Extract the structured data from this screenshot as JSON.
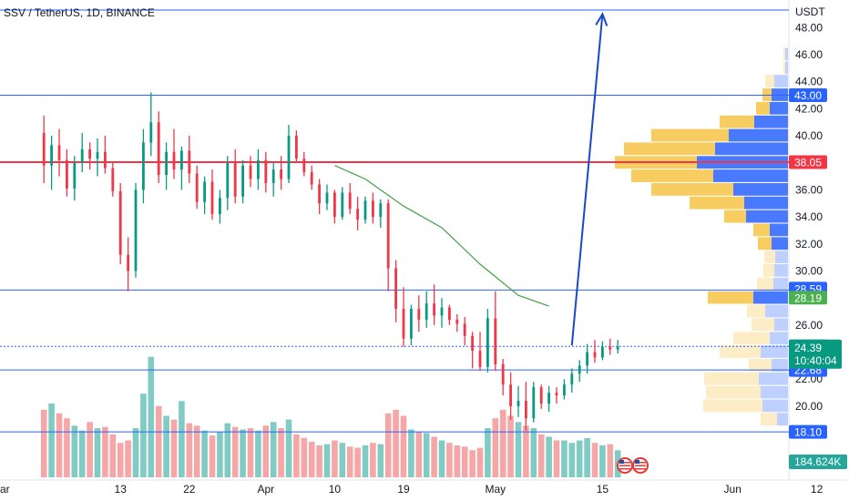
{
  "title": "SSV / TetherUS, 1D, BINANCE",
  "currency": "USDT",
  "chart_data": {
    "type": "candlestick",
    "y_range": [
      17.3,
      49.5
    ],
    "y_ticks": [
      "48.00",
      "46.00",
      "44.00",
      "42.00",
      "40.00",
      "38.00",
      "36.00",
      "34.00",
      "32.00",
      "30.00",
      "28.00",
      "26.00",
      "22.00",
      "20.00"
    ],
    "y_tick_values": [
      48,
      46,
      44,
      42,
      40,
      38,
      36,
      34,
      32,
      30,
      28,
      26,
      22,
      20
    ],
    "x_labels": [
      "ar",
      "13",
      "22",
      "Apr",
      "10",
      "19",
      "May",
      "15",
      "Jun",
      "12"
    ],
    "x_label_days": [
      -10,
      13,
      22,
      32,
      41,
      50,
      62,
      76,
      93,
      104
    ],
    "start_day": 3,
    "ohlc": [
      [
        40.2,
        41.5,
        36.5,
        37.8
      ],
      [
        37.8,
        40.0,
        36.0,
        39.3
      ],
      [
        39.3,
        40.5,
        37.0,
        38.2
      ],
      [
        38.2,
        39.0,
        35.5,
        36.1
      ],
      [
        36.1,
        38.5,
        35.2,
        38.0
      ],
      [
        38.0,
        40.2,
        37.3,
        39.0
      ],
      [
        39.0,
        39.5,
        37.5,
        38.3
      ],
      [
        38.3,
        39.8,
        37.0,
        38.8
      ],
      [
        38.8,
        40.0,
        37.2,
        37.6
      ],
      [
        37.6,
        38.0,
        35.5,
        35.9
      ],
      [
        35.9,
        36.5,
        30.5,
        31.2
      ],
      [
        31.2,
        32.5,
        28.5,
        30.0
      ],
      [
        30.0,
        36.5,
        29.5,
        36.0
      ],
      [
        36.0,
        40.5,
        35.0,
        39.5
      ],
      [
        39.5,
        43.2,
        38.5,
        41.0
      ],
      [
        41.0,
        41.8,
        36.5,
        37.1
      ],
      [
        37.1,
        39.5,
        36.0,
        38.8
      ],
      [
        38.8,
        40.5,
        36.8,
        37.5
      ],
      [
        37.5,
        39.2,
        36.0,
        38.9
      ],
      [
        38.9,
        40.0,
        36.5,
        37.2
      ],
      [
        37.2,
        37.8,
        34.6,
        35.1
      ],
      [
        35.1,
        37.0,
        34.2,
        36.6
      ],
      [
        36.6,
        37.5,
        33.8,
        34.2
      ],
      [
        34.2,
        36.0,
        33.5,
        35.4
      ],
      [
        35.4,
        38.5,
        34.5,
        38.0
      ],
      [
        38.0,
        39.0,
        35.0,
        35.5
      ],
      [
        35.5,
        38.2,
        35.0,
        37.8
      ],
      [
        37.8,
        38.5,
        36.2,
        36.8
      ],
      [
        36.8,
        39.0,
        36.0,
        38.2
      ],
      [
        38.2,
        38.8,
        35.8,
        36.5
      ],
      [
        36.5,
        38.0,
        35.5,
        37.5
      ],
      [
        37.5,
        38.5,
        36.0,
        36.8
      ],
      [
        36.8,
        40.8,
        36.5,
        40.0
      ],
      [
        40.0,
        40.4,
        38.0,
        38.3
      ],
      [
        38.3,
        38.8,
        37.0,
        37.3
      ],
      [
        37.3,
        37.8,
        36.0,
        36.4
      ],
      [
        36.4,
        36.8,
        34.2,
        35.0
      ],
      [
        35.0,
        36.4,
        34.5,
        35.8
      ],
      [
        35.8,
        36.0,
        33.5,
        34.0
      ],
      [
        34.0,
        36.2,
        33.8,
        35.8
      ],
      [
        35.8,
        36.5,
        34.2,
        34.6
      ],
      [
        34.6,
        35.5,
        33.0,
        33.8
      ],
      [
        33.8,
        35.5,
        33.5,
        35.2
      ],
      [
        35.2,
        35.8,
        33.5,
        34.0
      ],
      [
        34.0,
        35.3,
        33.2,
        35.0
      ],
      [
        35.0,
        35.3,
        28.5,
        30.2
      ],
      [
        30.2,
        30.8,
        26.2,
        27.2
      ],
      [
        27.2,
        28.8,
        24.4,
        25.0
      ],
      [
        25.0,
        27.5,
        24.5,
        27.2
      ],
      [
        27.2,
        28.2,
        25.5,
        26.4
      ],
      [
        26.4,
        28.5,
        25.8,
        27.6
      ],
      [
        27.6,
        29.0,
        26.0,
        26.7
      ],
      [
        26.7,
        28.0,
        25.8,
        27.3
      ],
      [
        27.3,
        27.5,
        26.0,
        26.4
      ],
      [
        26.4,
        26.8,
        25.5,
        26.1
      ],
      [
        26.1,
        26.6,
        24.5,
        25.2
      ],
      [
        25.2,
        25.5,
        22.8,
        24.1
      ],
      [
        24.1,
        25.5,
        22.6,
        22.9
      ],
      [
        22.9,
        27.2,
        22.5,
        26.5
      ],
      [
        26.5,
        28.5,
        22.6,
        23.1
      ],
      [
        23.1,
        23.5,
        20.8,
        21.6
      ],
      [
        21.6,
        22.5,
        19.0,
        20.0
      ],
      [
        20.0,
        21.5,
        19.2,
        20.4
      ],
      [
        20.4,
        21.8,
        18.2,
        19.1
      ],
      [
        19.1,
        21.8,
        18.8,
        21.4
      ],
      [
        21.4,
        21.6,
        19.8,
        20.2
      ],
      [
        20.2,
        21.5,
        19.6,
        21.0
      ],
      [
        21.0,
        21.4,
        20.2,
        20.8
      ],
      [
        20.8,
        22.0,
        20.5,
        21.6
      ],
      [
        21.6,
        22.8,
        21.0,
        22.4
      ],
      [
        22.4,
        23.4,
        21.8,
        23.0
      ],
      [
        23.0,
        24.6,
        22.4,
        24.0
      ],
      [
        24.0,
        24.9,
        23.2,
        23.6
      ],
      [
        23.6,
        24.8,
        23.4,
        24.4
      ],
      [
        24.4,
        25.0,
        23.8,
        24.2
      ],
      [
        24.2,
        24.9,
        23.9,
        24.39
      ]
    ],
    "volume": [
      55,
      60,
      52,
      48,
      42,
      38,
      45,
      40,
      41,
      35,
      28,
      30,
      40,
      68,
      98,
      58,
      50,
      47,
      62,
      44,
      42,
      38,
      34,
      37,
      44,
      41,
      39,
      40,
      38,
      42,
      45,
      40,
      47,
      35,
      32,
      29,
      26,
      27,
      30,
      28,
      25,
      24,
      26,
      28,
      27,
      52,
      55,
      50,
      39,
      37,
      36,
      33,
      30,
      28,
      26,
      25,
      22,
      24,
      40,
      48,
      55,
      50,
      45,
      42,
      40,
      35,
      33,
      30,
      30,
      28,
      30,
      32,
      28,
      26,
      27,
      22
    ],
    "volume_max": 100,
    "volume_profile": [
      {
        "price": 46.0,
        "buy": 2,
        "sell": 3
      },
      {
        "price": 45.0,
        "buy": 2,
        "sell": 3
      },
      {
        "price": 44.0,
        "buy": 10,
        "sell": 15
      },
      {
        "price": 43.0,
        "buy": 10,
        "sell": 18
      },
      {
        "price": 42.0,
        "buy": 15,
        "sell": 20
      },
      {
        "price": 41.0,
        "buy": 38,
        "sell": 37
      },
      {
        "price": 40.0,
        "buy": 85,
        "sell": 65
      },
      {
        "price": 39.0,
        "buy": 100,
        "sell": 80
      },
      {
        "price": 38.0,
        "buy": 90,
        "sell": 100
      },
      {
        "price": 37.0,
        "buy": 90,
        "sell": 82
      },
      {
        "price": 36.0,
        "buy": 90,
        "sell": 60
      },
      {
        "price": 35.0,
        "buy": 60,
        "sell": 48
      },
      {
        "price": 34.0,
        "buy": 24,
        "sell": 46
      },
      {
        "price": 33.0,
        "buy": 18,
        "sell": 20
      },
      {
        "price": 32.0,
        "buy": 15,
        "sell": 18
      },
      {
        "price": 31.0,
        "buy": 12,
        "sell": 14
      },
      {
        "price": 30.0,
        "buy": 12,
        "sell": 15
      },
      {
        "price": 29.0,
        "buy": 18,
        "sell": 16
      },
      {
        "price": 28.0,
        "buy": 50,
        "sell": 38
      },
      {
        "price": 27.0,
        "buy": 20,
        "sell": 25
      },
      {
        "price": 26.0,
        "buy": 25,
        "sell": 15
      },
      {
        "price": 25.0,
        "buy": 40,
        "sell": 20
      },
      {
        "price": 24.0,
        "buy": 45,
        "sell": 30
      },
      {
        "price": 23.0,
        "buy": 25,
        "sell": 18
      },
      {
        "price": 22.0,
        "buy": 60,
        "sell": 32
      },
      {
        "price": 21.0,
        "buy": 60,
        "sell": 30
      },
      {
        "price": 20.0,
        "buy": 65,
        "sell": 28
      },
      {
        "price": 19.0,
        "buy": 18,
        "sell": 12
      }
    ],
    "horizontal_levels": [
      {
        "price": 49.3,
        "color": "#2962ff"
      },
      {
        "price": 43.0,
        "color": "#2962ff"
      },
      {
        "price": 38.05,
        "color": "#f23645"
      },
      {
        "price": 28.59,
        "color": "#2962ff"
      },
      {
        "price": 24.42,
        "color": "#2962ff"
      },
      {
        "price": 22.68,
        "color": "#2962ff"
      },
      {
        "price": 18.1,
        "color": "#2962ff"
      }
    ],
    "arrow": {
      "from": [
        72,
        24.5
      ],
      "to": [
        76,
        49.0
      ],
      "color": "#1848cc"
    },
    "moving_average": {
      "color": "#43a047",
      "points": [
        [
          41,
          37.8
        ],
        [
          45,
          36.8
        ],
        [
          50,
          34.8
        ],
        [
          55,
          33.2
        ],
        [
          60,
          30.5
        ],
        [
          65,
          28.2
        ],
        [
          69,
          27.4
        ]
      ]
    },
    "price_tags": [
      {
        "price": 43.0,
        "label": "43.00",
        "color": "#2962ff"
      },
      {
        "price": 38.05,
        "label": "38.05",
        "color": "#f23645"
      },
      {
        "price": 28.59,
        "label": "28.59",
        "color": "#2962ff"
      },
      {
        "price": 28.19,
        "label": "28.19",
        "color": "#4caf50"
      },
      {
        "price": 24.42,
        "label": "24.42",
        "color": "#2962ff"
      },
      {
        "price": 22.68,
        "label": "22.68",
        "color": "#2962ff"
      },
      {
        "price": 18.1,
        "label": "18.10",
        "color": "#2962ff"
      }
    ],
    "last_price": {
      "label": "24.39",
      "countdown": "10:40:04",
      "color": "#089981",
      "price": 24.39
    },
    "volume_tag": {
      "label": "184.624K",
      "color": "#26a69a"
    },
    "colors": {
      "up": "#089981",
      "down": "#f23645",
      "vol_up": "#80cbc4",
      "vol_down": "#f5a6a6",
      "vp_buy": "#f6c445",
      "vp_sell": "#2962ff"
    }
  }
}
